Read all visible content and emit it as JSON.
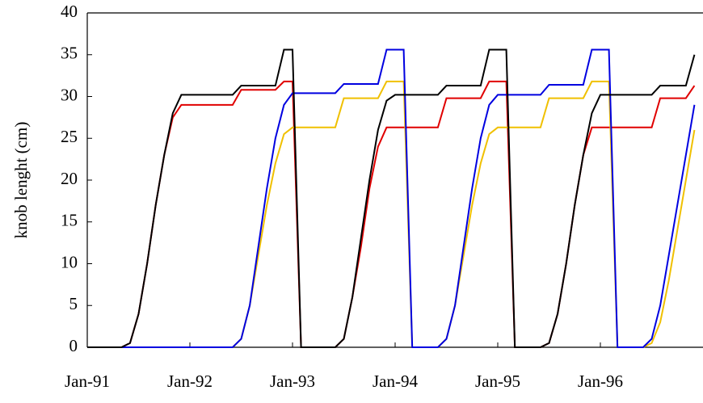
{
  "chart_data": {
    "type": "line",
    "y_label": "knob lenght (cm)",
    "x": [
      "Jan-91",
      "Feb-91",
      "Mar-91",
      "Apr-91",
      "May-91",
      "Jun-91",
      "Jul-91",
      "Aug-91",
      "Sep-91",
      "Oct-91",
      "Nov-91",
      "Dec-91",
      "Jan-92",
      "Feb-92",
      "Mar-92",
      "Apr-92",
      "May-92",
      "Jun-92",
      "Jul-92",
      "Aug-92",
      "Sep-92",
      "Oct-92",
      "Nov-92",
      "Dec-92",
      "Jan-93",
      "Feb-93",
      "Mar-93",
      "Apr-93",
      "May-93",
      "Jun-93",
      "Jul-93",
      "Aug-93",
      "Sep-93",
      "Oct-93",
      "Nov-93",
      "Dec-93",
      "Jan-94",
      "Feb-94",
      "Mar-94",
      "Apr-94",
      "May-94",
      "Jun-94",
      "Jul-94",
      "Aug-94",
      "Sep-94",
      "Oct-94",
      "Nov-94",
      "Dec-94",
      "Jan-95",
      "Feb-95",
      "Mar-95",
      "Apr-95",
      "May-95",
      "Jun-95",
      "Jul-95",
      "Aug-95",
      "Sep-95",
      "Oct-95",
      "Nov-95",
      "Dec-95",
      "Jan-96",
      "Feb-96",
      "Mar-96",
      "Apr-96",
      "May-96",
      "Jun-96",
      "Jul-96",
      "Aug-96",
      "Sep-96",
      "Oct-96",
      "Nov-96",
      "Dec-96"
    ],
    "series": [
      {
        "color": "#e00000",
        "values": [
          0,
          0,
          0,
          0,
          0,
          0.5,
          4,
          10,
          17,
          23,
          27.5,
          29,
          29,
          29,
          29,
          29,
          29,
          29,
          30.8,
          30.8,
          30.8,
          30.8,
          30.8,
          31.8,
          31.8,
          0,
          0,
          0,
          0,
          0,
          1,
          6,
          12,
          19,
          24,
          26.3,
          26.3,
          26.3,
          26.3,
          26.3,
          26.3,
          26.3,
          29.8,
          29.8,
          29.8,
          29.8,
          29.8,
          31.8,
          31.8,
          31.8,
          0,
          0,
          0,
          0,
          0.5,
          4,
          10,
          17,
          23,
          26.3,
          26.3,
          26.3,
          26.3,
          26.3,
          26.3,
          26.3,
          26.3,
          29.8,
          29.8,
          29.8,
          29.8,
          31.3
        ]
      },
      {
        "color": "#f0c000",
        "values": [
          0,
          0,
          0,
          0,
          0,
          0,
          0,
          0,
          0,
          0,
          0,
          0,
          0,
          0,
          0,
          0,
          0,
          0,
          1,
          5,
          11,
          17,
          22,
          25.5,
          26.3,
          26.3,
          26.3,
          26.3,
          26.3,
          26.3,
          29.8,
          29.8,
          29.8,
          29.8,
          29.8,
          31.8,
          31.8,
          31.8,
          0,
          0,
          0,
          0,
          1,
          5,
          11,
          17,
          22,
          25.5,
          26.3,
          26.3,
          26.3,
          26.3,
          26.3,
          26.3,
          29.8,
          29.8,
          29.8,
          29.8,
          29.8,
          31.8,
          31.8,
          31.8,
          0,
          0,
          0,
          0,
          0.5,
          3,
          8,
          14,
          20,
          26
        ]
      },
      {
        "color": "#0000e0",
        "values": [
          0,
          0,
          0,
          0,
          0,
          0,
          0,
          0,
          0,
          0,
          0,
          0,
          0,
          0,
          0,
          0,
          0,
          0,
          1,
          5,
          12,
          19,
          25,
          29,
          30.4,
          30.4,
          30.4,
          30.4,
          30.4,
          30.4,
          31.5,
          31.5,
          31.5,
          31.5,
          31.5,
          35.6,
          35.6,
          35.6,
          0,
          0,
          0,
          0,
          1,
          5,
          12,
          19,
          25,
          29,
          30.2,
          30.2,
          30.2,
          30.2,
          30.2,
          30.2,
          31.4,
          31.4,
          31.4,
          31.4,
          31.4,
          35.6,
          35.6,
          35.6,
          0,
          0,
          0,
          0,
          1,
          5,
          11,
          17,
          23,
          29
        ]
      },
      {
        "color": "#000000",
        "values": [
          0,
          0,
          0,
          0,
          0,
          0.5,
          4,
          10,
          17,
          23,
          28,
          30.2,
          30.2,
          30.2,
          30.2,
          30.2,
          30.2,
          30.2,
          31.3,
          31.3,
          31.3,
          31.3,
          31.3,
          35.6,
          35.6,
          0,
          0,
          0,
          0,
          0,
          1,
          6,
          13,
          20,
          26,
          29.5,
          30.2,
          30.2,
          30.2,
          30.2,
          30.2,
          30.2,
          31.3,
          31.3,
          31.3,
          31.3,
          31.3,
          35.6,
          35.6,
          35.6,
          0,
          0,
          0,
          0,
          0.5,
          4,
          10,
          17,
          23,
          28,
          30.2,
          30.2,
          30.2,
          30.2,
          30.2,
          30.2,
          30.2,
          31.3,
          31.3,
          31.3,
          31.3,
          35
        ]
      }
    ],
    "ylim": [
      0,
      40
    ],
    "yticks": [
      0,
      5,
      10,
      15,
      20,
      25,
      30,
      35,
      40
    ]
  }
}
